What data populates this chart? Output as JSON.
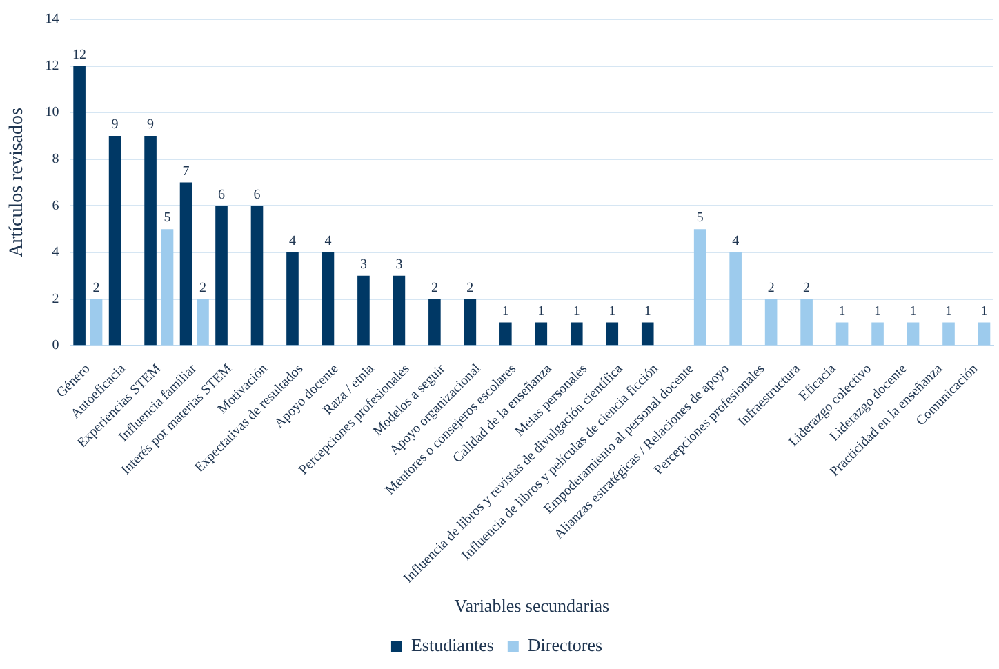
{
  "chart_data": {
    "type": "bar",
    "xlabel": "Variables secundarias",
    "ylabel": "Artículos revisados",
    "categories": [
      "Género",
      "Autoeficacia",
      "Experiencias STEM",
      "Influencia familiar",
      "Interés por materias STEM",
      "Motivación",
      "Expectativas de resultados",
      "Apoyo docente",
      "Raza / etnia",
      "Percepciones profesionales",
      "Modelos a seguir",
      "Apoyo organizacional",
      "Mentores o consejeros escolares",
      "Calidad de la enseñanza",
      "Metas personales",
      "Influencia de libros y revistas de divulgación científica",
      "Influencia de libros y películas de ciencia ficción",
      "Empoderamiento al personal docente",
      "Alianzas estratégicas / Relaciones de apoyo",
      "Percepciones profesionales",
      "Infraestructura",
      "Eficacia",
      "Liderazgo colectivo",
      "Liderazgo docente",
      "Practicidad en la enseñanza",
      "Comunicación"
    ],
    "series": [
      {
        "name": "Estudiantes",
        "color": "#003865",
        "values": [
          12,
          9,
          9,
          7,
          6,
          6,
          4,
          4,
          3,
          3,
          2,
          2,
          1,
          1,
          1,
          1,
          1,
          null,
          null,
          null,
          null,
          null,
          null,
          null,
          null,
          null
        ]
      },
      {
        "name": "Directores",
        "color": "#9dcbed",
        "values": [
          2,
          null,
          5,
          2,
          null,
          null,
          null,
          null,
          null,
          null,
          null,
          null,
          null,
          null,
          null,
          null,
          null,
          5,
          4,
          2,
          2,
          1,
          1,
          1,
          1,
          1
        ]
      }
    ],
    "ylim": [
      0,
      14
    ],
    "yticks": [
      0,
      2,
      4,
      6,
      8,
      10,
      12,
      14
    ],
    "grid": "y",
    "legend": "bottom",
    "data_labels": true
  }
}
